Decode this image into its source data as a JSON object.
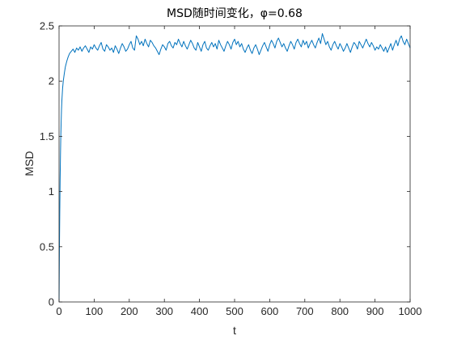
{
  "chart_data": {
    "type": "line",
    "title": "MSD随时间变化，φ=0.68",
    "xlabel": "t",
    "ylabel": "MSD",
    "xlim": [
      0,
      1000
    ],
    "ylim": [
      0,
      2.5
    ],
    "xticks": [
      0,
      100,
      200,
      300,
      400,
      500,
      600,
      700,
      800,
      900,
      1000
    ],
    "xtick_labels": [
      "0",
      "100",
      "200",
      "300",
      "400",
      "500",
      "600",
      "700",
      "800",
      "900",
      "1000"
    ],
    "yticks": [
      0,
      0.5,
      1,
      1.5,
      2,
      2.5
    ],
    "ytick_labels": [
      "0",
      "0.5",
      "1",
      "1.5",
      "2",
      "2.5"
    ],
    "grid": false,
    "box": true,
    "line_color": "#0072BD",
    "series": [
      {
        "x": [
          0,
          1,
          2,
          3,
          4,
          5,
          6,
          7,
          8,
          10,
          12,
          15,
          18,
          22,
          26,
          30,
          35,
          40,
          45,
          50,
          55,
          60,
          65,
          70,
          75,
          80,
          85,
          90,
          95,
          100,
          105,
          110,
          115,
          120,
          125,
          130,
          135,
          140,
          145,
          150,
          155,
          160,
          165,
          170,
          175,
          180,
          185,
          190,
          195,
          200,
          205,
          210,
          215,
          220,
          225,
          230,
          235,
          240,
          245,
          250,
          255,
          260,
          265,
          270,
          275,
          280,
          285,
          290,
          295,
          300,
          305,
          310,
          315,
          320,
          325,
          330,
          335,
          340,
          345,
          350,
          355,
          360,
          365,
          370,
          375,
          380,
          385,
          390,
          395,
          400,
          405,
          410,
          415,
          420,
          425,
          430,
          435,
          440,
          445,
          450,
          455,
          460,
          465,
          470,
          475,
          480,
          485,
          490,
          495,
          500,
          505,
          510,
          515,
          520,
          525,
          530,
          535,
          540,
          545,
          550,
          555,
          560,
          565,
          570,
          575,
          580,
          585,
          590,
          595,
          600,
          605,
          610,
          615,
          620,
          625,
          630,
          635,
          640,
          645,
          650,
          655,
          660,
          665,
          670,
          675,
          680,
          685,
          690,
          695,
          700,
          705,
          710,
          715,
          720,
          725,
          730,
          735,
          740,
          745,
          750,
          755,
          760,
          765,
          770,
          775,
          780,
          785,
          790,
          795,
          800,
          805,
          810,
          815,
          820,
          825,
          830,
          835,
          840,
          845,
          850,
          855,
          860,
          865,
          870,
          875,
          880,
          885,
          890,
          895,
          900,
          905,
          910,
          915,
          920,
          925,
          930,
          935,
          940,
          945,
          950,
          955,
          960,
          965,
          970,
          975,
          980,
          985,
          990,
          995,
          1000
        ],
        "y": [
          0,
          0.45,
          0.8,
          1.1,
          1.32,
          1.5,
          1.63,
          1.74,
          1.82,
          1.93,
          2.0,
          2.07,
          2.13,
          2.18,
          2.22,
          2.25,
          2.27,
          2.29,
          2.26,
          2.3,
          2.28,
          2.31,
          2.27,
          2.3,
          2.32,
          2.29,
          2.26,
          2.31,
          2.29,
          2.33,
          2.3,
          2.28,
          2.32,
          2.35,
          2.29,
          2.27,
          2.33,
          2.31,
          2.28,
          2.3,
          2.26,
          2.32,
          2.29,
          2.25,
          2.3,
          2.34,
          2.31,
          2.27,
          2.29,
          2.33,
          2.36,
          2.3,
          2.28,
          2.41,
          2.38,
          2.33,
          2.36,
          2.32,
          2.38,
          2.34,
          2.31,
          2.37,
          2.35,
          2.32,
          2.3,
          2.27,
          2.24,
          2.29,
          2.33,
          2.31,
          2.28,
          2.34,
          2.36,
          2.32,
          2.3,
          2.35,
          2.33,
          2.38,
          2.34,
          2.31,
          2.36,
          2.32,
          2.29,
          2.33,
          2.37,
          2.34,
          2.3,
          2.28,
          2.35,
          2.31,
          2.27,
          2.33,
          2.36,
          2.3,
          2.28,
          2.32,
          2.35,
          2.31,
          2.34,
          2.29,
          2.37,
          2.33,
          2.3,
          2.27,
          2.32,
          2.36,
          2.33,
          2.29,
          2.35,
          2.38,
          2.33,
          2.36,
          2.31,
          2.34,
          2.29,
          2.26,
          2.3,
          2.33,
          2.28,
          2.25,
          2.3,
          2.33,
          2.29,
          2.24,
          2.28,
          2.32,
          2.35,
          2.31,
          2.27,
          2.33,
          2.37,
          2.34,
          2.3,
          2.36,
          2.39,
          2.35,
          2.31,
          2.34,
          2.3,
          2.27,
          2.32,
          2.36,
          2.33,
          2.29,
          2.35,
          2.38,
          2.34,
          2.31,
          2.37,
          2.33,
          2.36,
          2.3,
          2.34,
          2.37,
          2.33,
          2.3,
          2.35,
          2.39,
          2.34,
          2.43,
          2.38,
          2.33,
          2.36,
          2.31,
          2.28,
          2.33,
          2.36,
          2.32,
          2.29,
          2.34,
          2.31,
          2.27,
          2.3,
          2.34,
          2.3,
          2.26,
          2.31,
          2.35,
          2.33,
          2.29,
          2.36,
          2.33,
          2.3,
          2.34,
          2.38,
          2.34,
          2.31,
          2.35,
          2.32,
          2.28,
          2.31,
          2.29,
          2.33,
          2.3,
          2.27,
          2.31,
          2.26,
          2.3,
          2.34,
          2.28,
          2.33,
          2.37,
          2.32,
          2.38,
          2.41,
          2.36,
          2.33,
          2.38,
          2.34,
          2.3
        ]
      }
    ]
  }
}
